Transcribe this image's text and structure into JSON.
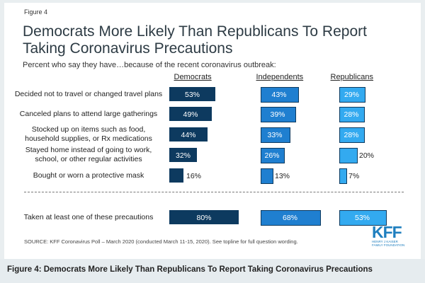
{
  "figure_label": "Figure 4",
  "title": "Democrats More Likely Than Republicans To Report Taking Coronavirus Precautions",
  "subtitle": "Percent who say they have…because of the recent coronavirus outbreak:",
  "source": "SOURCE: KFF Coronavirus Poll – March 2020 (conducted March 11-15, 2020). See topline for full question wording.",
  "logo": {
    "name": "KFF",
    "sub_line1": "HENRY J KAISER",
    "sub_line2": "FAMILY FOUNDATION"
  },
  "caption": "Figure 4: Democrats More Likely Than Republicans To Report Taking Coronavirus Precautions",
  "colors": {
    "Democrats": "#0d3a5f",
    "Independents": "#1f7fd0",
    "Republicans": "#33aaf0"
  },
  "chart_data": {
    "type": "bar",
    "title": "Democrats More Likely Than Republicans To Report Taking Coronavirus Precautions",
    "categories": [
      "Decided not to travel or changed travel plans",
      "Canceled plans to attend large gatherings",
      "Stocked up on items such as food, household supplies, or Rx medications",
      "Stayed home instead of going to work, school, or other regular activities",
      "Bought or worn a protective mask",
      "Taken at least one of these precautions"
    ],
    "series": [
      {
        "name": "Democrats",
        "values": [
          53,
          49,
          44,
          32,
          16,
          80
        ],
        "labels": [
          "53%",
          "49%",
          "44%",
          "32%",
          "16%",
          "80%"
        ]
      },
      {
        "name": "Independents",
        "values": [
          43,
          39,
          33,
          26,
          13,
          68
        ],
        "labels": [
          "43%",
          "39%",
          "33%",
          "26%",
          "13%",
          "68%"
        ]
      },
      {
        "name": "Republicans",
        "values": [
          29,
          28,
          28,
          20,
          7,
          53
        ],
        "labels": [
          "29%",
          "28%",
          "28%",
          "20%",
          "7%",
          "53%"
        ]
      }
    ],
    "unit": "%"
  }
}
